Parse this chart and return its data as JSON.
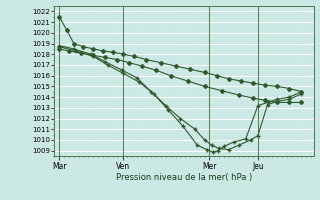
{
  "bg_color": "#cce8e4",
  "grid_color": "#b0d8d4",
  "line_color": "#2d5a2d",
  "marker_color": "#2d5a2d",
  "title": "Pression niveau de la mer( hPa )",
  "ylim": [
    1008.5,
    1022.5
  ],
  "yticks": [
    1009,
    1010,
    1011,
    1012,
    1013,
    1014,
    1015,
    1016,
    1017,
    1018,
    1019,
    1020,
    1021,
    1022
  ],
  "xtick_labels": [
    "Mar",
    "Ven",
    "Mer",
    "Jeu"
  ],
  "xtick_positions": [
    0.0,
    0.265,
    0.62,
    0.82
  ],
  "vline_positions": [
    0.0,
    0.265,
    0.62,
    0.82
  ],
  "series": [
    {
      "x": [
        0.0,
        0.03,
        0.06,
        0.1,
        0.14,
        0.18,
        0.22,
        0.265,
        0.31,
        0.36,
        0.42,
        0.48,
        0.54,
        0.6,
        0.65,
        0.7,
        0.75,
        0.8,
        0.85,
        0.9,
        0.95,
        1.0
      ],
      "y": [
        1021.5,
        1020.3,
        1019.0,
        1018.7,
        1018.5,
        1018.3,
        1018.2,
        1018.0,
        1017.8,
        1017.5,
        1017.2,
        1016.9,
        1016.6,
        1016.3,
        1016.0,
        1015.7,
        1015.5,
        1015.3,
        1015.1,
        1015.0,
        1014.8,
        1014.5
      ],
      "marker": "D",
      "markersize": 2.0,
      "lw": 0.8
    },
    {
      "x": [
        0.0,
        0.04,
        0.09,
        0.14,
        0.19,
        0.24,
        0.29,
        0.34,
        0.4,
        0.46,
        0.53,
        0.6,
        0.67,
        0.74,
        0.8,
        0.85,
        0.9,
        0.95,
        1.0
      ],
      "y": [
        1018.5,
        1018.3,
        1018.1,
        1017.9,
        1017.7,
        1017.5,
        1017.2,
        1016.9,
        1016.5,
        1016.0,
        1015.5,
        1015.0,
        1014.6,
        1014.2,
        1013.9,
        1013.7,
        1013.5,
        1013.5,
        1013.5
      ],
      "marker": "D",
      "markersize": 2.0,
      "lw": 0.8
    },
    {
      "x": [
        0.0,
        0.06,
        0.13,
        0.19,
        0.26,
        0.32,
        0.38,
        0.44,
        0.5,
        0.56,
        0.6,
        0.63,
        0.66,
        0.7,
        0.74,
        0.79,
        0.82,
        0.86,
        0.9,
        0.95,
        1.0
      ],
      "y": [
        1018.8,
        1018.5,
        1018.0,
        1017.3,
        1016.5,
        1015.8,
        1014.5,
        1013.2,
        1012.0,
        1011.0,
        1010.0,
        1009.5,
        1009.2,
        1009.1,
        1009.5,
        1010.0,
        1010.4,
        1013.3,
        1013.6,
        1013.8,
        1014.3
      ],
      "marker": "+",
      "markersize": 3.5,
      "lw": 0.8
    },
    {
      "x": [
        0.0,
        0.07,
        0.14,
        0.2,
        0.265,
        0.33,
        0.39,
        0.45,
        0.51,
        0.57,
        0.61,
        0.635,
        0.655,
        0.68,
        0.72,
        0.77,
        0.82,
        0.86,
        0.9,
        0.95,
        1.0
      ],
      "y": [
        1018.7,
        1018.3,
        1017.8,
        1017.0,
        1016.2,
        1015.4,
        1014.3,
        1012.8,
        1011.3,
        1009.5,
        1009.1,
        1008.85,
        1009.0,
        1009.4,
        1009.8,
        1010.1,
        1013.2,
        1013.5,
        1013.8,
        1014.0,
        1014.5
      ],
      "marker": "+",
      "markersize": 3.5,
      "lw": 0.8
    }
  ]
}
